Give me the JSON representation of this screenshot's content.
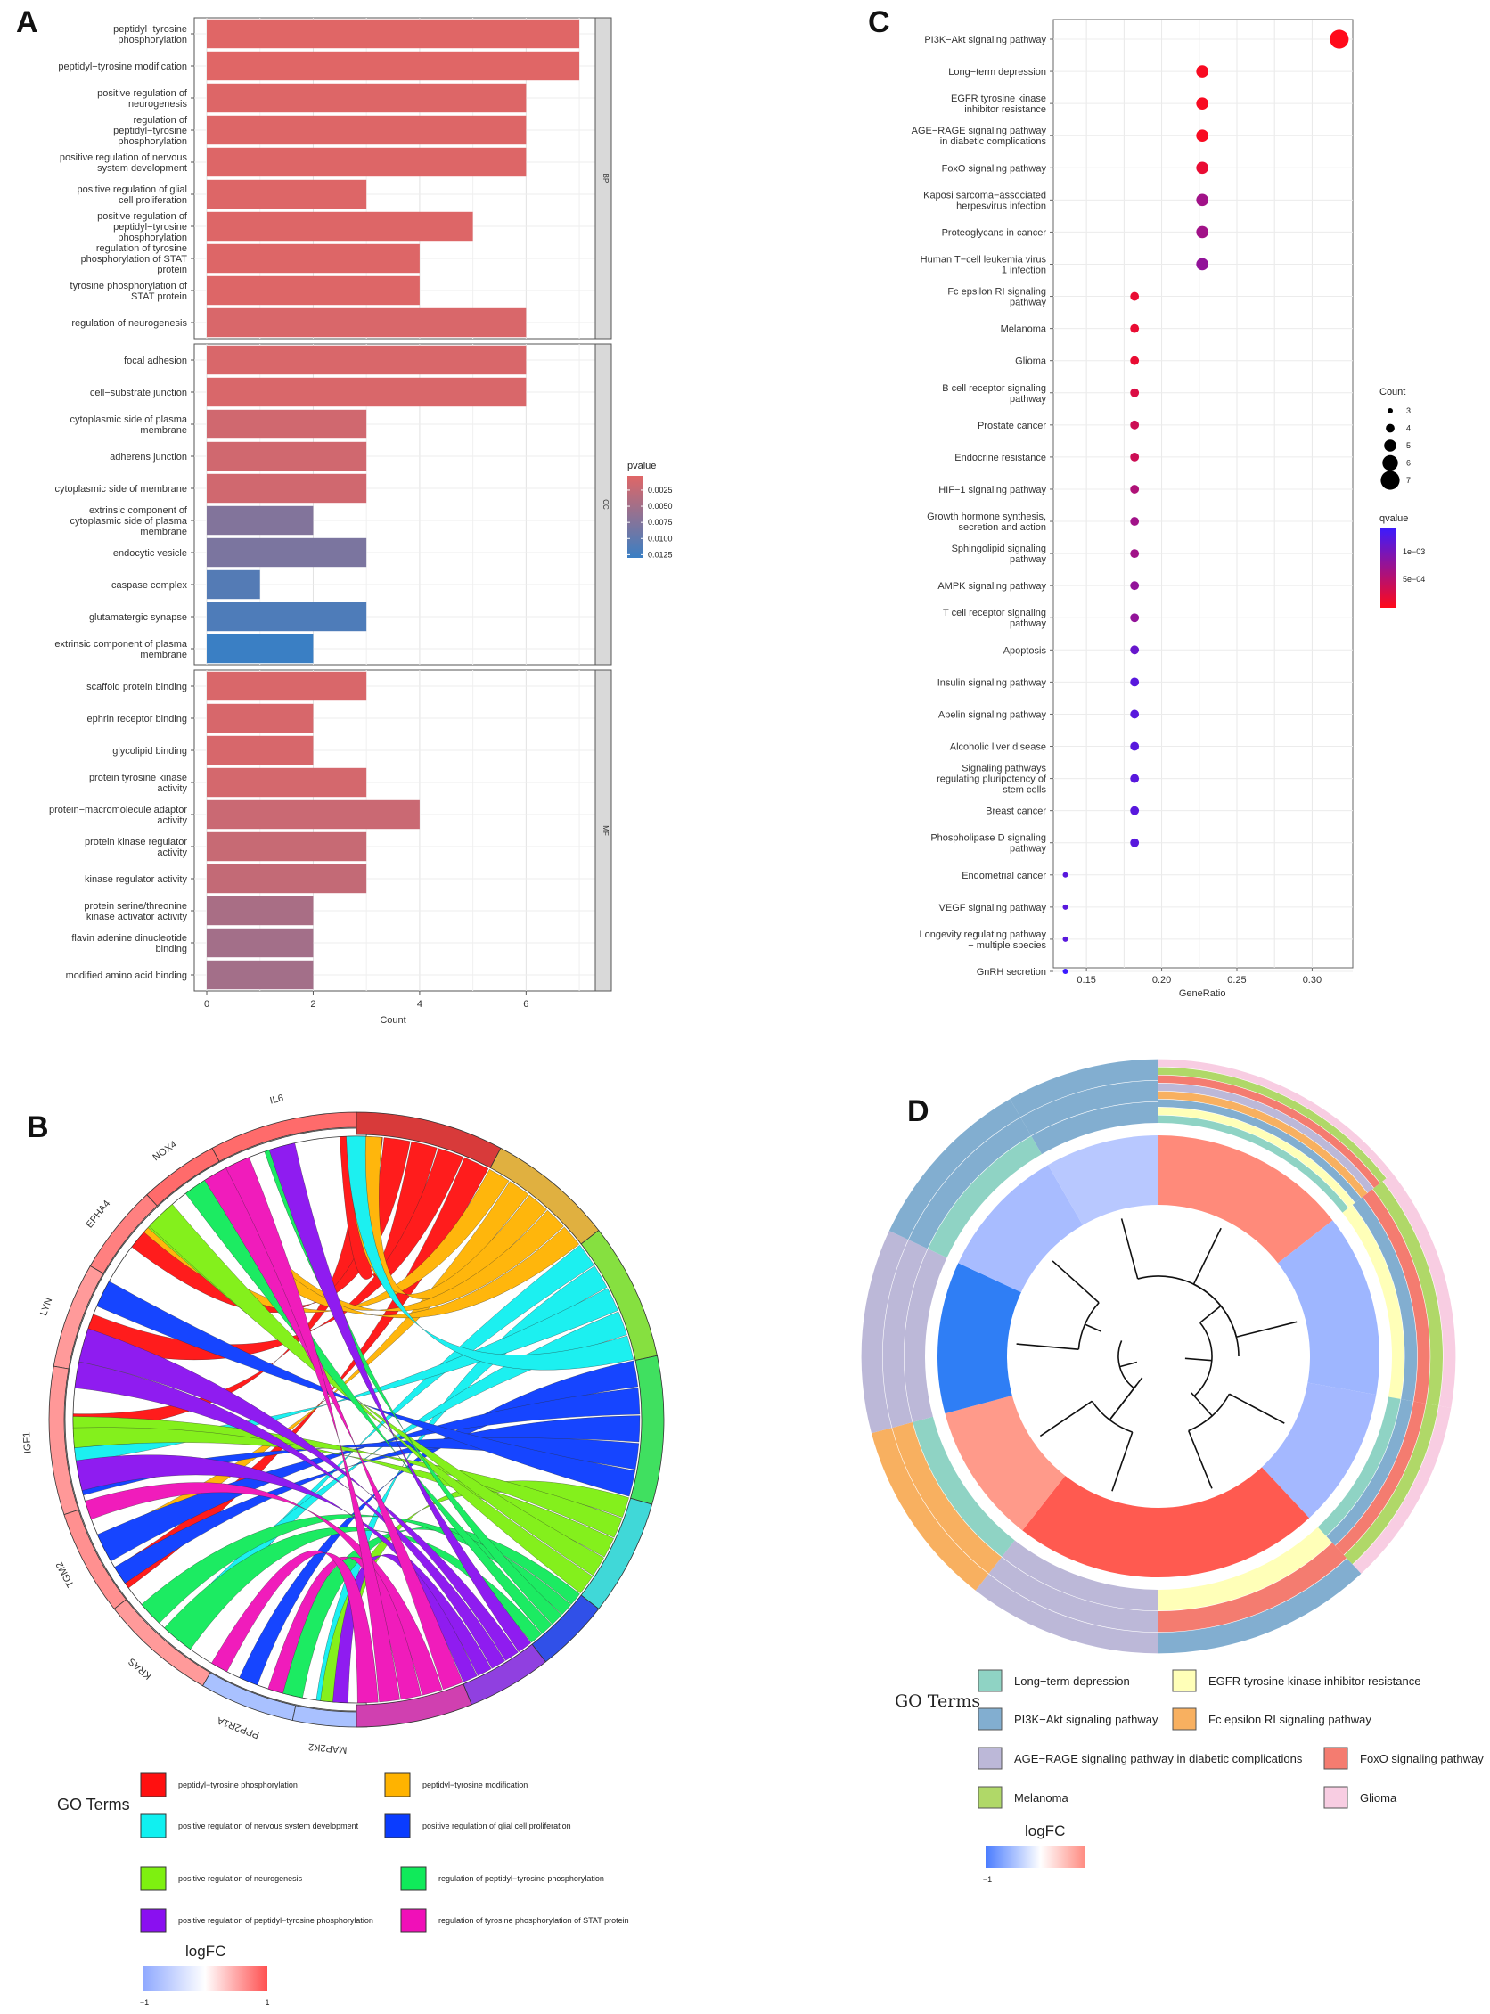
{
  "panels": {
    "A": "A",
    "B": "B",
    "C": "C",
    "D": "D"
  },
  "colors": {
    "bar_low_p": "#e06666",
    "bar_high_p": "#3a7fc4",
    "dot_low_q": "#ff0a1a",
    "dot_high_q": "#3b1bff",
    "logfc_low": "#4f7fff",
    "logfc_high": "#ff5a55"
  },
  "chart_data": [
    {
      "panel": "A",
      "type": "bar",
      "orientation": "horizontal",
      "xlabel": "Count",
      "xticks": [
        "0",
        "2",
        "4",
        "6"
      ],
      "xlim": [
        0,
        7.3
      ],
      "legend": {
        "title": "pvalue",
        "position": "right",
        "ticks": [
          "0.0025",
          "0.0050",
          "0.0075",
          "0.0100",
          "0.0125"
        ]
      },
      "facets": [
        {
          "name": "BP",
          "items": [
            {
              "label": "peptidyl−tyrosine phosphorylation",
              "count": 7,
              "pvalue": 0.0003
            },
            {
              "label": "peptidyl−tyrosine modification",
              "count": 7,
              "pvalue": 0.0003
            },
            {
              "label": "positive regulation of neurogenesis",
              "count": 6,
              "pvalue": 0.0005
            },
            {
              "label": "regulation of peptidyl−tyrosine phosphorylation",
              "count": 6,
              "pvalue": 0.0005
            },
            {
              "label": "positive regulation of nervous system development",
              "count": 6,
              "pvalue": 0.0005
            },
            {
              "label": "positive regulation of glial cell proliferation",
              "count": 3,
              "pvalue": 0.0005
            },
            {
              "label": "positive regulation of peptidyl−tyrosine phosphorylation",
              "count": 5,
              "pvalue": 0.0005
            },
            {
              "label": "regulation of tyrosine phosphorylation of STAT protein",
              "count": 4,
              "pvalue": 0.0005
            },
            {
              "label": "tyrosine phosphorylation of STAT protein",
              "count": 4,
              "pvalue": 0.0005
            },
            {
              "label": "regulation of neurogenesis",
              "count": 6,
              "pvalue": 0.0008
            }
          ]
        },
        {
          "name": "CC",
          "items": [
            {
              "label": "focal adhesion",
              "count": 6,
              "pvalue": 0.0008
            },
            {
              "label": "cell−substrate junction",
              "count": 6,
              "pvalue": 0.0008
            },
            {
              "label": "cytoplasmic side of plasma membrane",
              "count": 3,
              "pvalue": 0.0015
            },
            {
              "label": "adherens junction",
              "count": 3,
              "pvalue": 0.0015
            },
            {
              "label": "cytoplasmic side of membrane",
              "count": 3,
              "pvalue": 0.0015
            },
            {
              "label": "extrinsic component of cytoplasmic side of plasma membrane",
              "count": 2,
              "pvalue": 0.0075
            },
            {
              "label": "endocytic vesicle",
              "count": 3,
              "pvalue": 0.008
            },
            {
              "label": "caspase complex",
              "count": 1,
              "pvalue": 0.011
            },
            {
              "label": "glutamatergic synapse",
              "count": 3,
              "pvalue": 0.0115
            },
            {
              "label": "extrinsic component of plasma membrane",
              "count": 2,
              "pvalue": 0.013
            }
          ]
        },
        {
          "name": "MF",
          "items": [
            {
              "label": "scaffold protein binding",
              "count": 3,
              "pvalue": 0.0008
            },
            {
              "label": "ephrin receptor binding",
              "count": 2,
              "pvalue": 0.001
            },
            {
              "label": "glycolipid binding",
              "count": 2,
              "pvalue": 0.001
            },
            {
              "label": "protein tyrosine kinase activity",
              "count": 3,
              "pvalue": 0.0012
            },
            {
              "label": "protein−macromolecule adaptor activity",
              "count": 4,
              "pvalue": 0.002
            },
            {
              "label": "protein kinase regulator activity",
              "count": 3,
              "pvalue": 0.0022
            },
            {
              "label": "kinase regulator activity",
              "count": 3,
              "pvalue": 0.0025
            },
            {
              "label": "protein serine/threonine kinase activator activity",
              "count": 2,
              "pvalue": 0.0045
            },
            {
              "label": "flavin adenine dinucleotide binding",
              "count": 2,
              "pvalue": 0.005
            },
            {
              "label": "modified amino acid binding",
              "count": 2,
              "pvalue": 0.005
            }
          ]
        }
      ]
    },
    {
      "panel": "C",
      "type": "scatter",
      "xlabel": "GeneRatio",
      "xticks": [
        "0.15",
        "0.20",
        "0.25",
        "0.30"
      ],
      "xlim": [
        0.128,
        0.327
      ],
      "size_legend": {
        "title": "Count",
        "values": [
          "3",
          "4",
          "5",
          "6",
          "7"
        ],
        "position": "right"
      },
      "color_legend": {
        "title": "qvalue",
        "ticks": [
          "1e−03",
          "5e−04"
        ],
        "position": "right"
      },
      "points": [
        {
          "label": "PI3K−Akt signaling pathway",
          "x": 0.318,
          "count": 7,
          "qvalue": 5e-05
        },
        {
          "label": "Long−term depression",
          "x": 0.227,
          "count": 5,
          "qvalue": 0.0001
        },
        {
          "label": "EGFR tyrosine kinase inhibitor resistance",
          "x": 0.227,
          "count": 5,
          "qvalue": 0.0001
        },
        {
          "label": "AGE−RAGE signaling pathway in diabetic complications",
          "x": 0.227,
          "count": 5,
          "qvalue": 0.0001
        },
        {
          "label": "FoxO signaling pathway",
          "x": 0.227,
          "count": 5,
          "qvalue": 0.0002
        },
        {
          "label": "Kaposi sarcoma−associated herpesvirus infection",
          "x": 0.227,
          "count": 5,
          "qvalue": 0.0007
        },
        {
          "label": "Proteoglycans in cancer",
          "x": 0.227,
          "count": 5,
          "qvalue": 0.0007
        },
        {
          "label": "Human T−cell leukemia virus 1 infection",
          "x": 0.227,
          "count": 5,
          "qvalue": 0.0008
        },
        {
          "label": "Fc epsilon RI signaling pathway",
          "x": 0.182,
          "count": 4,
          "qvalue": 0.0002
        },
        {
          "label": "Melanoma",
          "x": 0.182,
          "count": 4,
          "qvalue": 0.0002
        },
        {
          "label": "Glioma",
          "x": 0.182,
          "count": 4,
          "qvalue": 0.0002
        },
        {
          "label": "B cell receptor signaling pathway",
          "x": 0.182,
          "count": 4,
          "qvalue": 0.0003
        },
        {
          "label": "Prostate cancer",
          "x": 0.182,
          "count": 4,
          "qvalue": 0.0004
        },
        {
          "label": "Endocrine resistance",
          "x": 0.182,
          "count": 4,
          "qvalue": 0.0004
        },
        {
          "label": "HIF−1 signaling pathway",
          "x": 0.182,
          "count": 4,
          "qvalue": 0.0006
        },
        {
          "label": "Growth hormone synthesis, secretion and action",
          "x": 0.182,
          "count": 4,
          "qvalue": 0.0007
        },
        {
          "label": "Sphingolipid signaling pathway",
          "x": 0.182,
          "count": 4,
          "qvalue": 0.0007
        },
        {
          "label": "AMPK signaling pathway",
          "x": 0.182,
          "count": 4,
          "qvalue": 0.0008
        },
        {
          "label": "T cell receptor signaling pathway",
          "x": 0.182,
          "count": 4,
          "qvalue": 0.0008
        },
        {
          "label": "Apoptosis",
          "x": 0.182,
          "count": 4,
          "qvalue": 0.0011
        },
        {
          "label": "Insulin signaling pathway",
          "x": 0.182,
          "count": 4,
          "qvalue": 0.0012
        },
        {
          "label": "Apelin signaling pathway",
          "x": 0.182,
          "count": 4,
          "qvalue": 0.0012
        },
        {
          "label": "Alcoholic liver disease",
          "x": 0.182,
          "count": 4,
          "qvalue": 0.0012
        },
        {
          "label": "Signaling pathways regulating pluripotency of stem cells",
          "x": 0.182,
          "count": 4,
          "qvalue": 0.0012
        },
        {
          "label": "Breast cancer",
          "x": 0.182,
          "count": 4,
          "qvalue": 0.0012
        },
        {
          "label": "Phospholipase D signaling pathway",
          "x": 0.182,
          "count": 4,
          "qvalue": 0.0012
        },
        {
          "label": "Endometrial cancer",
          "x": 0.136,
          "count": 3,
          "qvalue": 0.0012
        },
        {
          "label": "VEGF signaling pathway",
          "x": 0.136,
          "count": 3,
          "qvalue": 0.0012
        },
        {
          "label": "Longevity regulating pathway − multiple species",
          "x": 0.136,
          "count": 3,
          "qvalue": 0.0012
        },
        {
          "label": "GnRH secretion",
          "x": 0.136,
          "count": 3,
          "qvalue": 0.0014
        }
      ]
    },
    {
      "panel": "B",
      "type": "chord",
      "genes": [
        "IL6",
        "NOX4",
        "EPHA4",
        "LYN",
        "IGF1",
        "TGM2",
        "KRAS",
        "PPP2R1A",
        "MAP2K2"
      ],
      "legend_title": "GO Terms",
      "terms": [
        {
          "name": "peptidyl−tyrosine phosphorylation",
          "color": "#ff1010"
        },
        {
          "name": "peptidyl−tyrosine modification",
          "color": "#ffb300"
        },
        {
          "name": "positive regulation of nervous system development",
          "color": "#10f0f0"
        },
        {
          "name": "positive regulation of glial cell proliferation",
          "color": "#0a3cff"
        },
        {
          "name": "positive regulation of neurogenesis",
          "color": "#7ef010"
        },
        {
          "name": "regulation of peptidyl−tyrosine phosphorylation",
          "color": "#10ea5a"
        },
        {
          "name": "positive regulation of peptidyl−tyrosine phosphorylation",
          "color": "#8a10f0"
        },
        {
          "name": "regulation of tyrosine phosphorylation of STAT protein",
          "color": "#f010b8"
        }
      ],
      "logfc_title": "logFC",
      "logfc_ticks": [
        "−1",
        "1"
      ]
    },
    {
      "panel": "D",
      "type": "circular-dendrogram",
      "legend_title": "GO Terms",
      "terms": [
        {
          "name": "Long−term depression",
          "color": "#8fd3c4"
        },
        {
          "name": "EGFR tyrosine kinase inhibitor resistance",
          "color": "#ffffb8"
        },
        {
          "name": "PI3K−Akt signaling pathway",
          "color": "#82aed0"
        },
        {
          "name": "Fc epsilon RI signaling pathway",
          "color": "#f8b060"
        },
        {
          "name": "AGE−RAGE signaling pathway in diabetic complications",
          "color": "#bcb8d8"
        },
        {
          "name": "FoxO signaling pathway",
          "color": "#f47c70"
        },
        {
          "name": "Melanoma",
          "color": "#b0d868"
        },
        {
          "name": "Glioma",
          "color": "#f8cde2"
        }
      ],
      "logfc_title": "logFC",
      "logfc_ticks": [
        "−1"
      ]
    }
  ]
}
